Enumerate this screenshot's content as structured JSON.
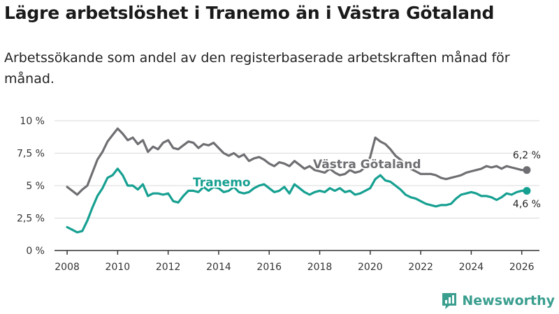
{
  "title": "Lägre arbetslöshet i Tranemo än i Västra Götaland",
  "subtitle": "Arbetssökande som andel av den registerbaserade arbetskraften månad för månad.",
  "brand": "Newsworthy",
  "colors": {
    "tranemo": "#16a091",
    "vg": "#6f6f73",
    "grid": "#d9d9d9",
    "axis": "#333333",
    "brand": "#3a9e8f"
  },
  "chart_data": {
    "type": "line",
    "xlabel": "",
    "ylabel": "",
    "xlim": [
      2007.5,
      2026.7
    ],
    "ylim": [
      0,
      10
    ],
    "x_ticks": [
      2008,
      2010,
      2012,
      2014,
      2016,
      2018,
      2020,
      2022,
      2024,
      2026
    ],
    "y_ticks": [
      0,
      2.5,
      5,
      7.5,
      10
    ],
    "y_tick_labels": [
      "0 %",
      "2,5 %",
      "5 %",
      "7,5 %",
      "10 %"
    ],
    "series": [
      {
        "name": "Västra Götaland",
        "label": "Västra Götaland",
        "end_label": "6,2 %",
        "x": [
          2008.0,
          2008.2,
          2008.4,
          2008.6,
          2008.8,
          2009.0,
          2009.2,
          2009.4,
          2009.6,
          2009.8,
          2010.0,
          2010.2,
          2010.4,
          2010.6,
          2010.8,
          2011.0,
          2011.2,
          2011.4,
          2011.6,
          2011.8,
          2012.0,
          2012.2,
          2012.4,
          2012.6,
          2012.8,
          2013.0,
          2013.2,
          2013.4,
          2013.6,
          2013.8,
          2014.0,
          2014.2,
          2014.4,
          2014.6,
          2014.8,
          2015.0,
          2015.2,
          2015.4,
          2015.6,
          2015.8,
          2016.0,
          2016.2,
          2016.4,
          2016.6,
          2016.8,
          2017.0,
          2017.2,
          2017.4,
          2017.6,
          2017.8,
          2018.0,
          2018.2,
          2018.4,
          2018.6,
          2018.8,
          2019.0,
          2019.2,
          2019.4,
          2019.6,
          2019.8,
          2020.0,
          2020.2,
          2020.4,
          2020.6,
          2020.8,
          2021.0,
          2021.2,
          2021.4,
          2021.6,
          2021.8,
          2022.0,
          2022.2,
          2022.4,
          2022.6,
          2022.8,
          2023.0,
          2023.2,
          2023.4,
          2023.6,
          2023.8,
          2024.0,
          2024.2,
          2024.4,
          2024.6,
          2024.8,
          2025.0,
          2025.2,
          2025.4,
          2025.6,
          2025.8,
          2026.0,
          2026.2
        ],
        "values": [
          4.9,
          4.6,
          4.3,
          4.7,
          5.0,
          6.0,
          7.0,
          7.6,
          8.4,
          8.9,
          9.4,
          9.0,
          8.5,
          8.7,
          8.2,
          8.5,
          7.6,
          8.0,
          7.8,
          8.3,
          8.5,
          7.9,
          7.8,
          8.1,
          8.4,
          8.3,
          7.9,
          8.2,
          8.1,
          8.3,
          7.9,
          7.5,
          7.3,
          7.5,
          7.2,
          7.4,
          6.9,
          7.1,
          7.2,
          7.0,
          6.7,
          6.5,
          6.8,
          6.7,
          6.5,
          6.9,
          6.6,
          6.3,
          6.5,
          6.2,
          6.1,
          6.0,
          6.3,
          6.0,
          5.8,
          5.9,
          6.2,
          6.0,
          6.1,
          6.4,
          7.2,
          8.7,
          8.4,
          8.2,
          7.8,
          7.3,
          7.0,
          6.6,
          6.3,
          6.1,
          5.9,
          5.9,
          5.9,
          5.8,
          5.6,
          5.5,
          5.6,
          5.7,
          5.8,
          6.0,
          6.1,
          6.2,
          6.3,
          6.5,
          6.4,
          6.5,
          6.3,
          6.5,
          6.4,
          6.3,
          6.2,
          6.2
        ]
      },
      {
        "name": "Tranemo",
        "label": "Tranemo",
        "end_label": "4,6 %",
        "x": [
          2008.0,
          2008.2,
          2008.4,
          2008.6,
          2008.8,
          2009.0,
          2009.2,
          2009.4,
          2009.6,
          2009.8,
          2010.0,
          2010.2,
          2010.4,
          2010.6,
          2010.8,
          2011.0,
          2011.2,
          2011.4,
          2011.6,
          2011.8,
          2012.0,
          2012.2,
          2012.4,
          2012.6,
          2012.8,
          2013.0,
          2013.2,
          2013.4,
          2013.6,
          2013.8,
          2014.0,
          2014.2,
          2014.4,
          2014.6,
          2014.8,
          2015.0,
          2015.2,
          2015.4,
          2015.6,
          2015.8,
          2016.0,
          2016.2,
          2016.4,
          2016.6,
          2016.8,
          2017.0,
          2017.2,
          2017.4,
          2017.6,
          2017.8,
          2018.0,
          2018.2,
          2018.4,
          2018.6,
          2018.8,
          2019.0,
          2019.2,
          2019.4,
          2019.6,
          2019.8,
          2020.0,
          2020.2,
          2020.4,
          2020.6,
          2020.8,
          2021.0,
          2021.2,
          2021.4,
          2021.6,
          2021.8,
          2022.0,
          2022.2,
          2022.4,
          2022.6,
          2022.8,
          2023.0,
          2023.2,
          2023.4,
          2023.6,
          2023.8,
          2024.0,
          2024.2,
          2024.4,
          2024.6,
          2024.8,
          2025.0,
          2025.2,
          2025.4,
          2025.6,
          2025.8,
          2026.0,
          2026.2
        ],
        "values": [
          1.8,
          1.6,
          1.4,
          1.5,
          2.3,
          3.3,
          4.2,
          4.8,
          5.6,
          5.8,
          6.3,
          5.8,
          5.0,
          5.0,
          4.7,
          5.1,
          4.2,
          4.4,
          4.4,
          4.3,
          4.4,
          3.8,
          3.7,
          4.2,
          4.6,
          4.6,
          4.5,
          4.9,
          4.6,
          4.9,
          4.8,
          4.5,
          4.6,
          4.9,
          4.5,
          4.4,
          4.5,
          4.8,
          5.0,
          5.1,
          4.8,
          4.5,
          4.6,
          4.9,
          4.4,
          5.1,
          4.8,
          4.5,
          4.3,
          4.5,
          4.6,
          4.5,
          4.8,
          4.6,
          4.8,
          4.5,
          4.6,
          4.3,
          4.4,
          4.6,
          4.8,
          5.5,
          5.8,
          5.4,
          5.3,
          5.0,
          4.7,
          4.3,
          4.1,
          4.0,
          3.8,
          3.6,
          3.5,
          3.4,
          3.5,
          3.5,
          3.6,
          4.0,
          4.3,
          4.4,
          4.5,
          4.4,
          4.2,
          4.2,
          4.1,
          3.9,
          4.1,
          4.4,
          4.3,
          4.5,
          4.6,
          4.6
        ]
      }
    ]
  }
}
